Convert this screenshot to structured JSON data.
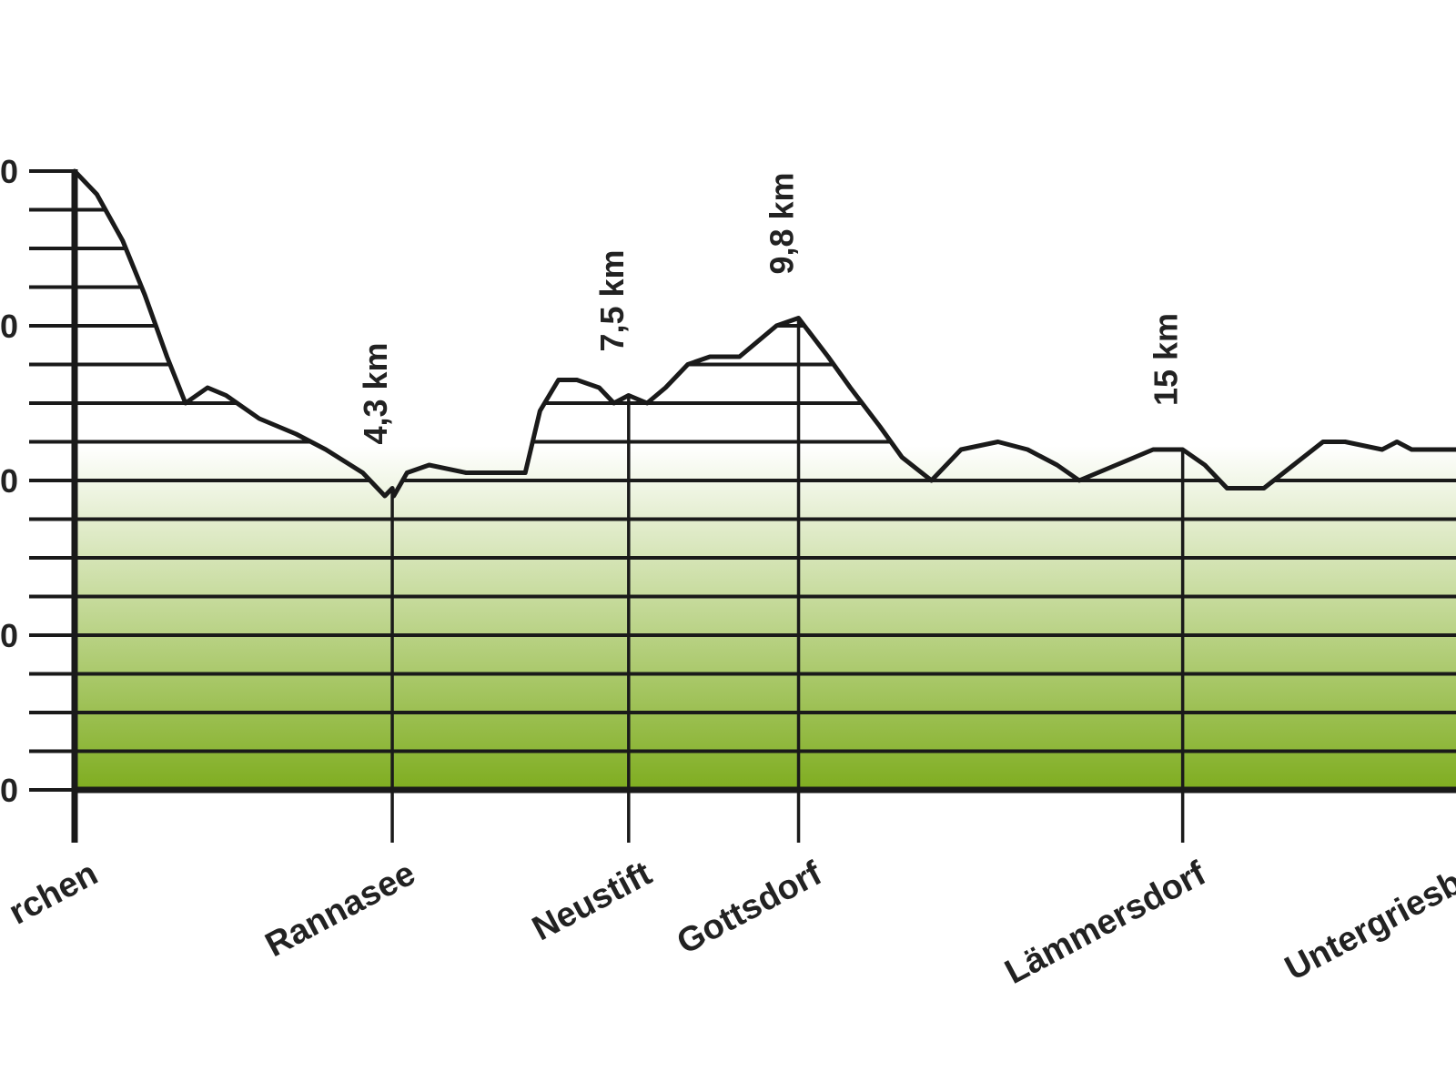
{
  "chart_data": {
    "type": "area",
    "title": "",
    "xlabel": "",
    "ylabel": "",
    "xlim": [
      0,
      18.7
    ],
    "ylim": [
      0,
      4
    ],
    "grid": true,
    "y_ticks": [
      {
        "value": 0,
        "label": "0"
      },
      {
        "value": 1,
        "label": "0"
      },
      {
        "value": 2,
        "label": "0"
      },
      {
        "value": 3,
        "label": "0"
      },
      {
        "value": 4,
        "label": "0"
      }
    ],
    "series": [
      {
        "x": [
          0,
          0.3,
          0.65,
          0.95,
          1.25,
          1.5,
          1.8,
          2.05,
          2.5,
          3.0,
          3.4,
          3.9,
          4.2,
          4.3,
          4.32,
          4.5,
          4.8,
          5.3,
          5.8,
          6.1,
          6.3,
          6.55,
          6.8,
          7.1,
          7.3,
          7.5,
          7.75,
          8.0,
          8.3,
          8.6,
          9.0,
          9.5,
          9.8,
          10.2,
          10.5,
          10.9,
          11.2,
          11.6,
          12.0,
          12.5,
          12.9,
          13.3,
          13.6,
          14.1,
          14.6,
          15.0,
          15.3,
          15.6,
          16.1,
          16.5,
          16.9,
          17.2,
          17.7,
          17.9,
          18.1,
          18.4,
          18.7
        ],
        "y": [
          4.0,
          3.85,
          3.55,
          3.2,
          2.8,
          2.5,
          2.6,
          2.55,
          2.4,
          2.3,
          2.2,
          2.05,
          1.9,
          1.95,
          1.9,
          2.05,
          2.1,
          2.05,
          2.05,
          2.05,
          2.45,
          2.65,
          2.65,
          2.6,
          2.5,
          2.55,
          2.5,
          2.6,
          2.75,
          2.8,
          2.8,
          3.0,
          3.05,
          2.8,
          2.6,
          2.35,
          2.15,
          2.0,
          2.2,
          2.25,
          2.2,
          2.1,
          2.0,
          2.1,
          2.2,
          2.2,
          2.1,
          1.95,
          1.95,
          2.1,
          2.25,
          2.25,
          2.2,
          2.25,
          2.2,
          2.2,
          2.2
        ]
      }
    ],
    "places": [
      {
        "name": "rchen",
        "x": 0
      },
      {
        "name": "Rannasee",
        "x": 4.3
      },
      {
        "name": "Neustift",
        "x": 7.5
      },
      {
        "name": "Gottsdorf",
        "x": 9.8
      },
      {
        "name": "Lämmersdorf",
        "x": 15
      },
      {
        "name": "Untergriesba",
        "x": 18.7
      }
    ],
    "distance_markers": [
      {
        "label": "4,3 km",
        "x": 4.3
      },
      {
        "label": "7,5 km",
        "x": 7.5
      },
      {
        "label": "9,8 km",
        "x": 9.8
      },
      {
        "label": "15 km",
        "x": 15
      }
    ],
    "colors": {
      "fill_top": "#ffffff",
      "fill_bottom": "#7fad20",
      "line": "#1a1a1a"
    }
  }
}
